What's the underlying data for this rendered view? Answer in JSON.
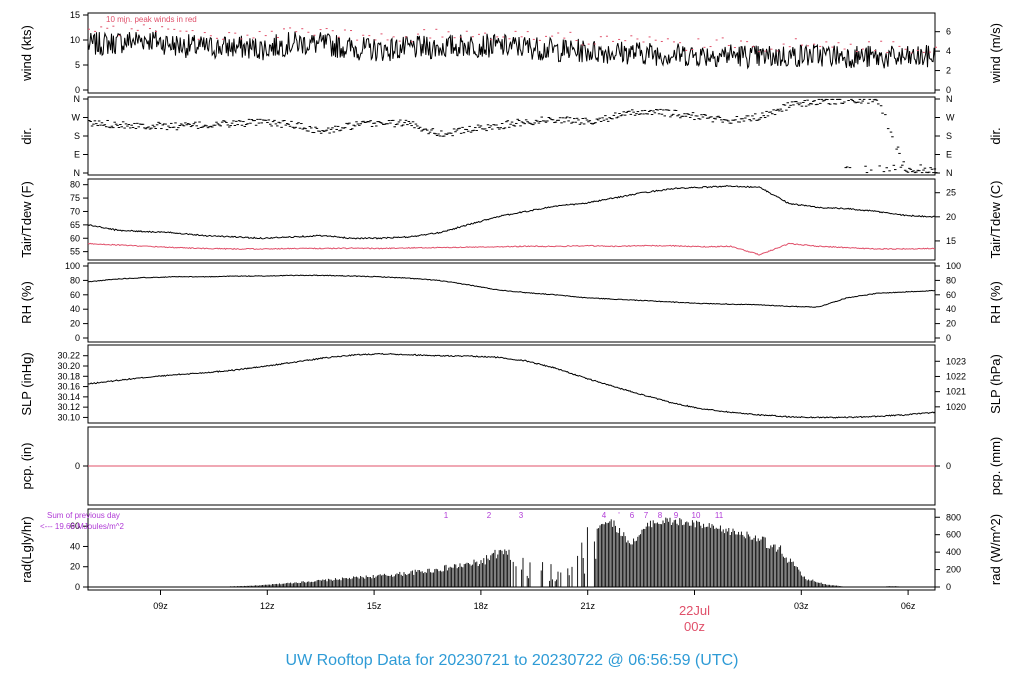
{
  "title": "UW Rooftop Data for 20230721  to  20230722 @ 06:56:59  (UTC)",
  "colors": {
    "title": "#2e9bd6",
    "accent": "#e0506a",
    "annotation": "#b03ad6",
    "line": "#000000"
  },
  "chart_data": [
    {
      "type": "line",
      "ylabel": "wind (kts)",
      "ylabel_right": "wind (m/s)",
      "left_ticks": [
        "0",
        "5",
        "10",
        "15"
      ],
      "right_ticks": [
        "0",
        "2",
        "4",
        "6"
      ],
      "ylim": [
        0,
        15
      ],
      "note": "10 min. peak winds in red",
      "series": [
        {
          "name": "wind",
          "values_kts": [
            9.0,
            9.5,
            10.2,
            9.0,
            8.5,
            8.6,
            8.3,
            9.4,
            9.2,
            8.4,
            8.0,
            8.4,
            8.5,
            9.0,
            8.8,
            8.6,
            8.0,
            7.8,
            7.6,
            7.4,
            7.1,
            7.0,
            7.1,
            6.6,
            6.8,
            7.0,
            6.8,
            6.5,
            6.4,
            6.7
          ]
        },
        {
          "name": "10 min. peak",
          "values_kts": [
            11.5,
            12.0,
            13.0,
            11.5,
            11.0,
            11.2,
            10.8,
            11.6,
            11.8,
            10.8,
            10.2,
            10.8,
            11.0,
            11.5,
            11.2,
            11.0,
            10.5,
            10.2,
            10.0,
            9.6,
            9.2,
            9.0,
            9.3,
            8.8,
            9.0,
            9.2,
            9.0,
            8.6,
            8.5,
            8.8
          ]
        }
      ]
    },
    {
      "type": "scatter",
      "ylabel": "dir.",
      "ylabel_right": "dir.",
      "left_ticks": [
        "N",
        "E",
        "S",
        "W",
        "N"
      ],
      "right_ticks": [
        "N",
        "E",
        "S",
        "W",
        "N"
      ],
      "ylim": [
        0,
        360
      ],
      "series": [
        {
          "name": "direction",
          "values_deg": [
            240,
            238,
            230,
            228,
            232,
            242,
            245,
            235,
            200,
            230,
            245,
            240,
            190,
            210,
            230,
            250,
            262,
            250,
            275,
            300,
            288,
            272,
            255,
            275,
            330,
            350,
            355,
            358,
            5,
            10
          ]
        }
      ]
    },
    {
      "type": "line",
      "ylabel": "Tair/Tdew (F)",
      "ylabel_right": "Tair/Tdew (C)",
      "left_ticks": [
        "55",
        "60",
        "65",
        "70",
        "75",
        "80"
      ],
      "right_ticks": [
        "15",
        "20",
        "25"
      ],
      "ylim": [
        53,
        81
      ],
      "series": [
        {
          "name": "Tair",
          "values_F": [
            65.0,
            63.0,
            62.5,
            62.0,
            61.0,
            60.5,
            60.0,
            60.5,
            61.0,
            60.0,
            60.0,
            60.5,
            62.0,
            65.0,
            68.0,
            70.0,
            72.0,
            73.0,
            75.0,
            77.0,
            78.5,
            79.0,
            79.5,
            79.0,
            73.0,
            71.5,
            71.0,
            70.0,
            68.5,
            68.0
          ]
        },
        {
          "name": "Tdew",
          "values_F": [
            58.0,
            57.5,
            57.0,
            56.5,
            56.2,
            56.0,
            56.0,
            56.2,
            56.2,
            56.3,
            56.2,
            56.4,
            56.5,
            56.7,
            56.8,
            57.0,
            57.0,
            57.2,
            57.0,
            57.2,
            57.2,
            56.8,
            57.0,
            53.8,
            58.0,
            57.0,
            56.5,
            56.0,
            56.0,
            56.2
          ]
        }
      ]
    },
    {
      "type": "line",
      "ylabel": "RH (%)",
      "ylabel_right": "RH (%)",
      "left_ticks": [
        "0",
        "20",
        "40",
        "60",
        "80",
        "100"
      ],
      "right_ticks": [
        "0",
        "20",
        "40",
        "60",
        "80",
        "100"
      ],
      "ylim": [
        0,
        100
      ],
      "series": [
        {
          "name": "RH",
          "values": [
            78,
            82,
            84,
            85,
            85,
            86,
            86,
            87,
            87,
            86,
            85,
            83,
            80,
            74,
            67,
            63,
            60,
            56,
            54,
            52,
            50,
            48,
            47,
            46,
            44,
            43,
            56,
            62,
            64,
            66
          ]
        }
      ]
    },
    {
      "type": "line",
      "ylabel": "SLP (inHg)",
      "ylabel_right": "SLP (hPa)",
      "left_ticks": [
        "30.10",
        "30.12",
        "30.14",
        "30.16",
        "30.18",
        "30.20",
        "30.22"
      ],
      "right_ticks": [
        "1020",
        "1021",
        "1022",
        "1023"
      ],
      "ylim": [
        30.095,
        30.235
      ],
      "series": [
        {
          "name": "SLP",
          "values": [
            30.165,
            30.172,
            30.178,
            30.183,
            30.187,
            30.192,
            30.199,
            30.207,
            30.215,
            30.221,
            30.224,
            30.222,
            30.22,
            30.219,
            30.217,
            30.21,
            30.196,
            30.177,
            30.16,
            30.144,
            30.128,
            30.117,
            30.11,
            30.105,
            30.101,
            30.1,
            30.1,
            30.102,
            30.105,
            30.11
          ]
        }
      ]
    },
    {
      "type": "line",
      "ylabel": "pcp. (in)",
      "ylabel_right": "pcp. (mm)",
      "left_ticks": [
        "0"
      ],
      "right_ticks": [
        "0"
      ],
      "series": [
        {
          "name": "precip",
          "values": [
            0,
            0,
            0,
            0,
            0,
            0,
            0,
            0,
            0,
            0,
            0,
            0,
            0,
            0,
            0,
            0,
            0,
            0,
            0,
            0,
            0,
            0,
            0,
            0,
            0,
            0,
            0,
            0,
            0,
            0
          ]
        }
      ]
    },
    {
      "type": "bar",
      "ylabel": "rad(Lgly/hr)",
      "ylabel_right": "rad (W/m^2)",
      "left_ticks": [
        "0",
        "20",
        "40",
        "60"
      ],
      "right_ticks": [
        "0",
        "200",
        "400",
        "600",
        "800"
      ],
      "ylim": [
        0,
        75
      ],
      "annotation_lines": [
        "Sum of previous day",
        "<--- 19.69 MJoules/m^2"
      ],
      "hour_labels": [
        "1",
        "2",
        "3",
        "4",
        "'",
        "6",
        "7",
        "8",
        "9",
        "10",
        "11"
      ],
      "series": [
        {
          "name": "radiation",
          "values": [
            0,
            0,
            0,
            0,
            0,
            0,
            0.3,
            1,
            2,
            4,
            6,
            8,
            10,
            12,
            14,
            17,
            20,
            24,
            28,
            40,
            32,
            30,
            25,
            60,
            70,
            45,
            68,
            68,
            65,
            60,
            56,
            50,
            40,
            10,
            3,
            0,
            0,
            1,
            0,
            0
          ]
        }
      ]
    }
  ],
  "x_axis": {
    "ticks": [
      "09z",
      "12z",
      "15z",
      "18z",
      "21z",
      "03z",
      "06z"
    ],
    "day_label": "22Jul",
    "day_sub_label": "00z"
  }
}
